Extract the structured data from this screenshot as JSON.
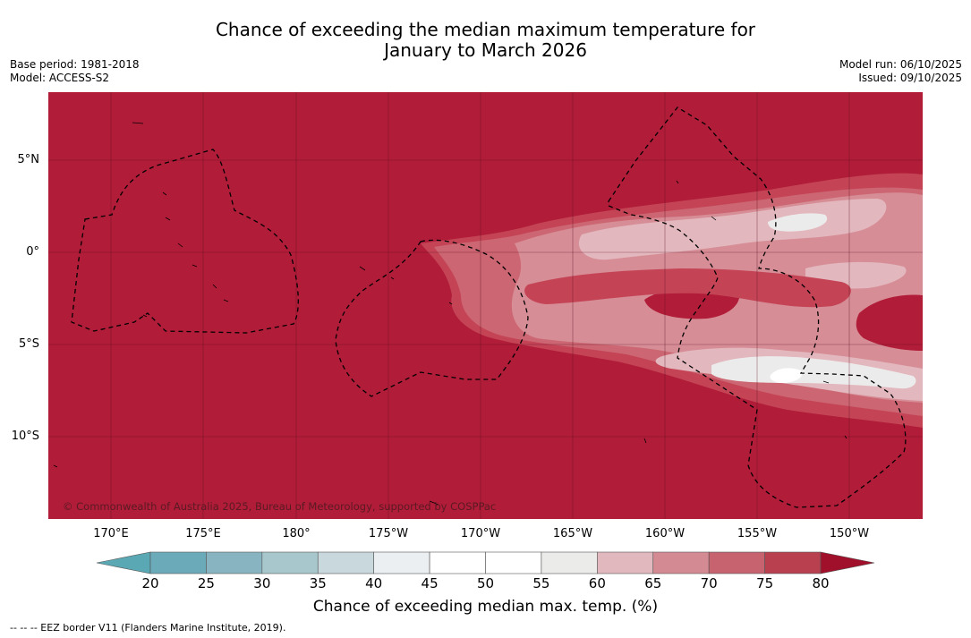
{
  "title_line1": "Chance of exceeding the median maximum temperature for",
  "title_line2": "January to March 2026",
  "base_period": "Base period: 1981-2018",
  "model": "Model: ACCESS-S2",
  "model_run": "Model run: 06/10/2025",
  "issued": "Issued: 09/10/2025",
  "lat_labels": [
    "5°N",
    "0°",
    "5°S",
    "10°S"
  ],
  "lon_labels": [
    "170°E",
    "175°E",
    "180°",
    "175°W",
    "170°W",
    "165°W",
    "160°W",
    "155°W",
    "150°W"
  ],
  "copyright": "© Commonwealth of Australia 2025, Bureau of Meteorology, supported by COSPPac",
  "colorbar": {
    "ticks": [
      "20",
      "25",
      "30",
      "35",
      "40",
      "45",
      "50",
      "55",
      "60",
      "65",
      "70",
      "75",
      "80"
    ],
    "colors": [
      "#6aaab9",
      "#88b4c1",
      "#a7c7cc",
      "#c8d8dd",
      "#ebeff2",
      "#ffffff",
      "#ffffff",
      "#ebebea",
      "#e0b8bd",
      "#d48a93",
      "#c6636f",
      "#b8404f"
    ],
    "under_color": "#5aa8b4",
    "over_color": "#a0102a",
    "label": "Chance of exceeding median max. temp. (%)"
  },
  "footnote": "--  --  -- EEZ border V11 (Flanders Marine Institute, 2019).",
  "map_colors": {
    "background": "#b11c38",
    "p75": "#c44456",
    "p70": "#cc6672",
    "p65": "#d68d96",
    "p60": "#e2b7bd",
    "p55": "#ecebeb"
  }
}
